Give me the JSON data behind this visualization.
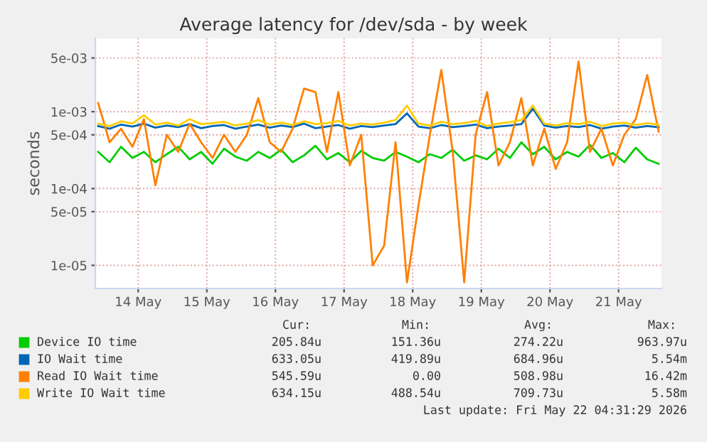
{
  "chart_data": {
    "type": "line",
    "title": "Average latency for /dev/sda - by week",
    "ylabel": "seconds",
    "x": [
      "2026-05-13T22:00",
      "2026-05-14T02:00",
      "2026-05-14T06:00",
      "2026-05-14T10:00",
      "2026-05-14T14:00",
      "2026-05-14T18:00",
      "2026-05-14T22:00",
      "2026-05-15T02:00",
      "2026-05-15T06:00",
      "2026-05-15T10:00",
      "2026-05-15T14:00",
      "2026-05-15T18:00",
      "2026-05-15T22:00",
      "2026-05-16T02:00",
      "2026-05-16T06:00",
      "2026-05-16T10:00",
      "2026-05-16T14:00",
      "2026-05-16T18:00",
      "2026-05-16T22:00",
      "2026-05-17T02:00",
      "2026-05-17T06:00",
      "2026-05-17T10:00",
      "2026-05-17T14:00",
      "2026-05-17T18:00",
      "2026-05-17T22:00",
      "2026-05-18T02:00",
      "2026-05-18T06:00",
      "2026-05-18T10:00",
      "2026-05-18T14:00",
      "2026-05-18T18:00",
      "2026-05-18T22:00",
      "2026-05-19T02:00",
      "2026-05-19T06:00",
      "2026-05-19T10:00",
      "2026-05-19T14:00",
      "2026-05-19T18:00",
      "2026-05-19T22:00",
      "2026-05-20T02:00",
      "2026-05-20T06:00",
      "2026-05-20T10:00",
      "2026-05-20T14:00",
      "2026-05-20T18:00",
      "2026-05-20T22:00",
      "2026-05-21T02:00",
      "2026-05-21T06:00",
      "2026-05-21T10:00",
      "2026-05-21T14:00",
      "2026-05-21T18:00",
      "2026-05-21T22:00",
      "2026-05-22T02:00"
    ],
    "series": [
      {
        "name": "Device IO time",
        "color": "#00cc00",
        "values": [
          0.0003,
          0.00022,
          0.00035,
          0.00025,
          0.0003,
          0.00022,
          0.00028,
          0.00035,
          0.00024,
          0.0003,
          0.00021,
          0.00033,
          0.00026,
          0.00023,
          0.0003,
          0.00025,
          0.00032,
          0.00022,
          0.00027,
          0.00036,
          0.00024,
          0.00029,
          0.00022,
          0.00031,
          0.00025,
          0.00023,
          0.0003,
          0.00026,
          0.00022,
          0.00028,
          0.00025,
          0.00032,
          0.00023,
          0.00027,
          0.00024,
          0.00033,
          0.00025,
          0.0004,
          0.00028,
          0.00035,
          0.00024,
          0.0003,
          0.00026,
          0.00037,
          0.00025,
          0.00029,
          0.00022,
          0.00034,
          0.00024,
          0.00021
        ]
      },
      {
        "name": "IO Wait time",
        "color": "#0066b3",
        "values": [
          0.00065,
          0.0006,
          0.00068,
          0.00064,
          0.0007,
          0.00062,
          0.00066,
          0.00063,
          0.00069,
          0.00061,
          0.00065,
          0.00067,
          0.0006,
          0.00064,
          0.00068,
          0.00062,
          0.00066,
          0.00063,
          0.0007,
          0.00061,
          0.00064,
          0.00067,
          0.0006,
          0.00065,
          0.00063,
          0.00066,
          0.00069,
          0.00095,
          0.00064,
          0.00061,
          0.00067,
          0.00063,
          0.00065,
          0.00068,
          0.00061,
          0.00064,
          0.00066,
          0.00069,
          0.0011,
          0.00066,
          0.00062,
          0.00065,
          0.00063,
          0.00067,
          0.0006,
          0.00064,
          0.00066,
          0.00062,
          0.00065,
          0.00063
        ]
      },
      {
        "name": "Read IO Wait time",
        "color": "#ff8000",
        "values": [
          0.0013,
          0.0004,
          0.0006,
          0.00035,
          0.0008,
          0.00011,
          0.0005,
          0.0003,
          0.0007,
          0.0004,
          0.00025,
          0.0005,
          0.0003,
          0.0005,
          0.0015,
          0.0004,
          0.0003,
          0.0006,
          0.002,
          0.0018,
          0.0003,
          0.0018,
          0.0002,
          0.0005,
          1e-05,
          1.8e-05,
          0.0004,
          6e-06,
          6e-05,
          0.0005,
          0.0035,
          0.0003,
          6e-06,
          0.0005,
          0.0018,
          0.0002,
          0.0004,
          0.0015,
          0.0002,
          0.0006,
          0.00018,
          0.0004,
          0.0045,
          0.0003,
          0.0006,
          0.0002,
          0.0005,
          0.0008,
          0.003,
          0.00055
        ]
      },
      {
        "name": "Write IO Wait time",
        "color": "#ffcc00",
        "values": [
          0.0007,
          0.00065,
          0.00075,
          0.0007,
          0.0009,
          0.00068,
          0.00072,
          0.00066,
          0.0008,
          0.00069,
          0.00071,
          0.00074,
          0.00066,
          0.0007,
          0.00078,
          0.00068,
          0.00072,
          0.00067,
          0.00075,
          0.00069,
          0.00071,
          0.00076,
          0.00066,
          0.0007,
          0.00068,
          0.00072,
          0.00078,
          0.0012,
          0.0007,
          0.00066,
          0.00074,
          0.00069,
          0.00071,
          0.00076,
          0.00065,
          0.0007,
          0.00073,
          0.00078,
          0.0012,
          0.0007,
          0.00066,
          0.00071,
          0.00069,
          0.00074,
          0.00065,
          0.0007,
          0.00072,
          0.00067,
          0.00071,
          0.00068
        ]
      }
    ],
    "log": "y",
    "ylim": [
      5e-06,
      0.009
    ],
    "yticks": [
      {
        "value": 1e-05,
        "label": "1e-05"
      },
      {
        "value": 5e-05,
        "label": "5e-05"
      },
      {
        "value": 0.0001,
        "label": "1e-04"
      },
      {
        "value": 0.0005,
        "label": "5e-04"
      },
      {
        "value": 0.001,
        "label": "1e-03"
      },
      {
        "value": 0.005,
        "label": "5e-03"
      }
    ],
    "xlim": [
      "2026-05-13T21:00",
      "2026-05-22T03:00"
    ],
    "xticks": [
      {
        "value": "2026-05-14T12:00",
        "label": "14 May"
      },
      {
        "value": "2026-05-15T12:00",
        "label": "15 May"
      },
      {
        "value": "2026-05-16T12:00",
        "label": "16 May"
      },
      {
        "value": "2026-05-17T12:00",
        "label": "17 May"
      },
      {
        "value": "2026-05-18T12:00",
        "label": "18 May"
      },
      {
        "value": "2026-05-19T12:00",
        "label": "19 May"
      },
      {
        "value": "2026-05-20T12:00",
        "label": "20 May"
      },
      {
        "value": "2026-05-21T12:00",
        "label": "21 May"
      }
    ],
    "grid": true,
    "legend": "bottom",
    "annotations": [
      "Cur:",
      "Min:",
      "Avg:",
      "Max:",
      "205.84u",
      "151.36u",
      "274.22u",
      "963.97u",
      "633.05u",
      "419.89u",
      "684.96u",
      "5.54m",
      "545.59u",
      "0.00",
      "508.98u",
      "16.42m",
      "634.15u",
      "488.54u",
      "709.73u",
      "5.58m",
      "Last update: Fri May 22 04:31:29 2026"
    ]
  }
}
